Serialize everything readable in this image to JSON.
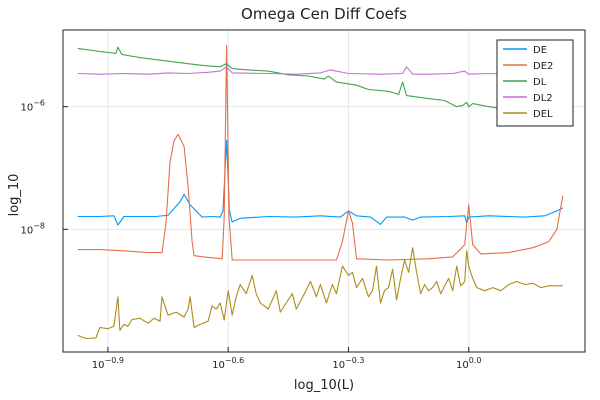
{
  "chart_data": {
    "type": "line",
    "title": "Omega Cen Diff Coefs",
    "xlabel": "log_10(L)",
    "ylabel": "log_10",
    "x_scale": "log",
    "y_scale": "log",
    "grid": true,
    "legend_placement": "top-right",
    "xlim_log10": [
      -1.012,
      0.29
    ],
    "ylim_log10": [
      -10.0,
      -4.75
    ],
    "x_ticks": [
      {
        "label_base": "10",
        "label_exp": "−0.9",
        "log10": -0.9
      },
      {
        "label_base": "10",
        "label_exp": "−0.6",
        "log10": -0.6
      },
      {
        "label_base": "10",
        "label_exp": "−0.3",
        "log10": -0.3
      },
      {
        "label_base": "10",
        "label_exp": "0.0",
        "log10": 0.0
      }
    ],
    "y_ticks": [
      {
        "label_base": "10",
        "label_exp": "−8",
        "log10": -8
      },
      {
        "label_base": "10",
        "label_exp": "−6",
        "log10": -6
      }
    ],
    "series": [
      {
        "name": "DE",
        "color": "#009AFA",
        "points": [
          [
            -0.975,
            -7.79
          ],
          [
            -0.92,
            -7.79
          ],
          [
            -0.885,
            -7.78
          ],
          [
            -0.875,
            -7.93
          ],
          [
            -0.86,
            -7.79
          ],
          [
            -0.8,
            -7.79
          ],
          [
            -0.78,
            -7.79
          ],
          [
            -0.75,
            -7.77
          ],
          [
            -0.72,
            -7.55
          ],
          [
            -0.71,
            -7.43
          ],
          [
            -0.695,
            -7.6
          ],
          [
            -0.68,
            -7.7
          ],
          [
            -0.665,
            -7.8
          ],
          [
            -0.64,
            -7.79
          ],
          [
            -0.62,
            -7.8
          ],
          [
            -0.613,
            -7.7
          ],
          [
            -0.604,
            -6.55
          ],
          [
            -0.597,
            -7.7
          ],
          [
            -0.59,
            -7.88
          ],
          [
            -0.57,
            -7.82
          ],
          [
            -0.5,
            -7.79
          ],
          [
            -0.43,
            -7.8
          ],
          [
            -0.37,
            -7.78
          ],
          [
            -0.32,
            -7.8
          ],
          [
            -0.3,
            -7.7
          ],
          [
            -0.28,
            -7.78
          ],
          [
            -0.245,
            -7.8
          ],
          [
            -0.22,
            -7.92
          ],
          [
            -0.205,
            -7.8
          ],
          [
            -0.16,
            -7.8
          ],
          [
            -0.14,
            -7.85
          ],
          [
            -0.12,
            -7.8
          ],
          [
            -0.05,
            -7.79
          ],
          [
            -0.01,
            -7.78
          ],
          [
            -0.005,
            -7.9
          ],
          [
            0.0,
            -7.8
          ],
          [
            0.05,
            -7.78
          ],
          [
            0.14,
            -7.8
          ],
          [
            0.19,
            -7.78
          ],
          [
            0.22,
            -7.7
          ],
          [
            0.235,
            -7.65
          ]
        ]
      },
      {
        "name": "DE2",
        "color": "#E36F47",
        "points": [
          [
            -0.975,
            -8.33
          ],
          [
            -0.92,
            -8.33
          ],
          [
            -0.86,
            -8.35
          ],
          [
            -0.8,
            -8.38
          ],
          [
            -0.765,
            -8.38
          ],
          [
            -0.755,
            -7.9
          ],
          [
            -0.745,
            -6.9
          ],
          [
            -0.735,
            -6.55
          ],
          [
            -0.725,
            -6.45
          ],
          [
            -0.71,
            -6.65
          ],
          [
            -0.7,
            -7.3
          ],
          [
            -0.69,
            -8.2
          ],
          [
            -0.685,
            -8.43
          ],
          [
            -0.66,
            -8.45
          ],
          [
            -0.615,
            -8.48
          ],
          [
            -0.61,
            -7.8
          ],
          [
            -0.604,
            -5.0
          ],
          [
            -0.598,
            -7.8
          ],
          [
            -0.59,
            -8.5
          ],
          [
            -0.5,
            -8.5
          ],
          [
            -0.4,
            -8.5
          ],
          [
            -0.33,
            -8.5
          ],
          [
            -0.315,
            -8.2
          ],
          [
            -0.3,
            -7.7
          ],
          [
            -0.29,
            -7.9
          ],
          [
            -0.28,
            -8.48
          ],
          [
            -0.2,
            -8.5
          ],
          [
            -0.1,
            -8.48
          ],
          [
            -0.04,
            -8.45
          ],
          [
            -0.01,
            -8.25
          ],
          [
            0.0,
            -7.6
          ],
          [
            0.01,
            -8.25
          ],
          [
            0.03,
            -8.4
          ],
          [
            0.1,
            -8.38
          ],
          [
            0.16,
            -8.3
          ],
          [
            0.2,
            -8.2
          ],
          [
            0.22,
            -8.0
          ],
          [
            0.232,
            -7.55
          ],
          [
            0.235,
            -7.45
          ]
        ]
      },
      {
        "name": "DL",
        "color": "#3EA44E",
        "points": [
          [
            -0.975,
            -5.05
          ],
          [
            -0.92,
            -5.1
          ],
          [
            -0.88,
            -5.13
          ],
          [
            -0.875,
            -5.03
          ],
          [
            -0.865,
            -5.15
          ],
          [
            -0.82,
            -5.2
          ],
          [
            -0.76,
            -5.25
          ],
          [
            -0.7,
            -5.3
          ],
          [
            -0.66,
            -5.33
          ],
          [
            -0.62,
            -5.35
          ],
          [
            -0.605,
            -5.3
          ],
          [
            -0.59,
            -5.38
          ],
          [
            -0.55,
            -5.4
          ],
          [
            -0.5,
            -5.42
          ],
          [
            -0.45,
            -5.48
          ],
          [
            -0.4,
            -5.5
          ],
          [
            -0.36,
            -5.55
          ],
          [
            -0.35,
            -5.5
          ],
          [
            -0.33,
            -5.6
          ],
          [
            -0.28,
            -5.65
          ],
          [
            -0.25,
            -5.72
          ],
          [
            -0.2,
            -5.75
          ],
          [
            -0.175,
            -5.8
          ],
          [
            -0.165,
            -5.6
          ],
          [
            -0.155,
            -5.82
          ],
          [
            -0.11,
            -5.86
          ],
          [
            -0.06,
            -5.9
          ],
          [
            -0.03,
            -6.0
          ],
          [
            -0.015,
            -5.98
          ],
          [
            -0.005,
            -5.93
          ],
          [
            0.0,
            -6.0
          ],
          [
            0.01,
            -5.95
          ],
          [
            0.05,
            -6.0
          ],
          [
            0.1,
            -6.05
          ],
          [
            0.15,
            -6.1
          ],
          [
            0.2,
            -6.23
          ],
          [
            0.215,
            -6.27
          ],
          [
            0.225,
            -6.1
          ],
          [
            0.232,
            -5.4
          ]
        ]
      },
      {
        "name": "DL2",
        "color": "#C271D2",
        "points": [
          [
            -0.975,
            -5.46
          ],
          [
            -0.92,
            -5.47
          ],
          [
            -0.86,
            -5.46
          ],
          [
            -0.8,
            -5.47
          ],
          [
            -0.75,
            -5.45
          ],
          [
            -0.7,
            -5.46
          ],
          [
            -0.65,
            -5.44
          ],
          [
            -0.62,
            -5.42
          ],
          [
            -0.604,
            -5.35
          ],
          [
            -0.59,
            -5.45
          ],
          [
            -0.5,
            -5.46
          ],
          [
            -0.43,
            -5.47
          ],
          [
            -0.37,
            -5.45
          ],
          [
            -0.345,
            -5.4
          ],
          [
            -0.3,
            -5.46
          ],
          [
            -0.22,
            -5.47
          ],
          [
            -0.165,
            -5.46
          ],
          [
            -0.155,
            -5.35
          ],
          [
            -0.14,
            -5.47
          ],
          [
            -0.1,
            -5.47
          ],
          [
            -0.04,
            -5.46
          ],
          [
            -0.01,
            -5.42
          ],
          [
            0.0,
            -5.47
          ],
          [
            0.05,
            -5.46
          ],
          [
            0.1,
            -5.47
          ],
          [
            0.16,
            -5.46
          ],
          [
            0.2,
            -5.47
          ],
          [
            0.22,
            -5.46
          ],
          [
            0.232,
            -5.3
          ]
        ]
      },
      {
        "name": "DEL",
        "color": "#AC8D18",
        "points": [
          [
            -0.975,
            -9.73
          ],
          [
            -0.955,
            -9.78
          ],
          [
            -0.93,
            -9.77
          ],
          [
            -0.92,
            -9.6
          ],
          [
            -0.9,
            -9.62
          ],
          [
            -0.885,
            -9.58
          ],
          [
            -0.875,
            -9.1
          ],
          [
            -0.87,
            -9.65
          ],
          [
            -0.86,
            -9.55
          ],
          [
            -0.85,
            -9.58
          ],
          [
            -0.84,
            -9.47
          ],
          [
            -0.82,
            -9.45
          ],
          [
            -0.8,
            -9.53
          ],
          [
            -0.785,
            -9.45
          ],
          [
            -0.77,
            -9.5
          ],
          [
            -0.765,
            -9.1
          ],
          [
            -0.75,
            -9.4
          ],
          [
            -0.73,
            -9.35
          ],
          [
            -0.71,
            -9.43
          ],
          [
            -0.7,
            -9.3
          ],
          [
            -0.695,
            -9.1
          ],
          [
            -0.685,
            -9.6
          ],
          [
            -0.67,
            -9.55
          ],
          [
            -0.65,
            -9.5
          ],
          [
            -0.64,
            -9.25
          ],
          [
            -0.63,
            -9.3
          ],
          [
            -0.62,
            -9.2
          ],
          [
            -0.61,
            -9.48
          ],
          [
            -0.6,
            -9.0
          ],
          [
            -0.59,
            -9.4
          ],
          [
            -0.58,
            -9.1
          ],
          [
            -0.57,
            -8.9
          ],
          [
            -0.555,
            -9.05
          ],
          [
            -0.54,
            -8.75
          ],
          [
            -0.53,
            -9.05
          ],
          [
            -0.52,
            -9.2
          ],
          [
            -0.5,
            -9.3
          ],
          [
            -0.48,
            -9.0
          ],
          [
            -0.47,
            -9.35
          ],
          [
            -0.46,
            -9.25
          ],
          [
            -0.44,
            -9.05
          ],
          [
            -0.43,
            -9.3
          ],
          [
            -0.41,
            -9.05
          ],
          [
            -0.395,
            -8.85
          ],
          [
            -0.38,
            -9.1
          ],
          [
            -0.37,
            -8.9
          ],
          [
            -0.355,
            -9.2
          ],
          [
            -0.34,
            -8.9
          ],
          [
            -0.33,
            -9.05
          ],
          [
            -0.315,
            -8.6
          ],
          [
            -0.3,
            -8.75
          ],
          [
            -0.29,
            -8.7
          ],
          [
            -0.28,
            -8.95
          ],
          [
            -0.265,
            -8.8
          ],
          [
            -0.25,
            -9.1
          ],
          [
            -0.24,
            -9.0
          ],
          [
            -0.23,
            -8.6
          ],
          [
            -0.22,
            -9.2
          ],
          [
            -0.21,
            -9.0
          ],
          [
            -0.2,
            -8.95
          ],
          [
            -0.19,
            -8.65
          ],
          [
            -0.18,
            -9.15
          ],
          [
            -0.17,
            -8.8
          ],
          [
            -0.16,
            -8.5
          ],
          [
            -0.15,
            -8.7
          ],
          [
            -0.14,
            -8.3
          ],
          [
            -0.13,
            -8.7
          ],
          [
            -0.12,
            -9.05
          ],
          [
            -0.11,
            -8.9
          ],
          [
            -0.1,
            -9.0
          ],
          [
            -0.09,
            -8.95
          ],
          [
            -0.08,
            -8.85
          ],
          [
            -0.07,
            -9.05
          ],
          [
            -0.06,
            -8.92
          ],
          [
            -0.05,
            -8.8
          ],
          [
            -0.04,
            -9.0
          ],
          [
            -0.03,
            -8.6
          ],
          [
            -0.02,
            -8.92
          ],
          [
            -0.01,
            -8.85
          ],
          [
            -0.005,
            -8.35
          ],
          [
            0.0,
            -8.6
          ],
          [
            0.01,
            -8.8
          ],
          [
            0.02,
            -8.95
          ],
          [
            0.04,
            -9.0
          ],
          [
            0.06,
            -8.95
          ],
          [
            0.08,
            -9.0
          ],
          [
            0.1,
            -8.9
          ],
          [
            0.12,
            -8.85
          ],
          [
            0.14,
            -8.9
          ],
          [
            0.16,
            -8.88
          ],
          [
            0.18,
            -8.95
          ],
          [
            0.2,
            -8.92
          ],
          [
            0.22,
            -8.92
          ],
          [
            0.235,
            -8.92
          ]
        ]
      }
    ]
  }
}
